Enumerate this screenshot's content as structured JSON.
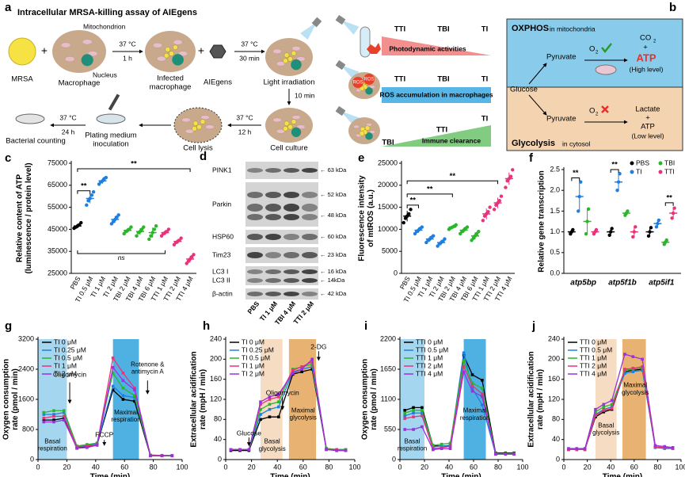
{
  "panel_a": {
    "label": "a",
    "title": "Intracellular MRSA-killing assay of AIEgens",
    "plus": "+",
    "mrsa": "MRSA",
    "macrophage": "Macrophage",
    "mitochondrion": "Mitochondrion",
    "nucleus": "Nucleus",
    "step1": {
      "top": "37 °C",
      "bottom": "1 h"
    },
    "infected": "Infected\nmacrophage",
    "aiegens": "AIEgens",
    "step2": {
      "top": "37 °C",
      "bottom": "30 min"
    },
    "irradiation": "Light irradiation",
    "step3": "10 min",
    "culture": "Cell culture",
    "step4": {
      "top": "37 °C",
      "bottom": "12 h"
    },
    "lysis": "Cell lysis",
    "plating": "Plating medium\ninoculation",
    "step5": {
      "top": "37 °C",
      "bottom": "24 h"
    },
    "counting": "Bacterial counting",
    "ros": "ROS",
    "rows": [
      {
        "labels": [
          "TTI",
          "TBI",
          "TI"
        ],
        "text": "Photodynamic activities"
      },
      {
        "labels": [
          "TTI",
          "TBI",
          "TI"
        ],
        "text": "ROS accumulation in macrophages"
      },
      {
        "labels": [
          "TBI",
          "TTI",
          "TI"
        ],
        "text": "Immune clearance"
      }
    ]
  },
  "panel_b": {
    "label": "b",
    "top_title": "OXPHOS",
    "top_sub": "in mitochondria",
    "pyruvate": "Pyruvate",
    "o2": "O",
    "o2_sub": "2",
    "co2": "CO",
    "co2_sub": "2",
    "plus": "+",
    "atp": "ATP",
    "high": "(High level)",
    "glucose": "Glucose",
    "lactate": "Lactate",
    "low": "(Low level)",
    "bottom_title": "Glycolysis",
    "bottom_sub": "in cytosol"
  },
  "panel_d": {
    "label": "d",
    "proteins": [
      "PINK1",
      "Parkin",
      "HSP60",
      "Tim23",
      "LC3 I",
      "LC3 II",
      "β-actin"
    ],
    "markers": [
      "← 63 kDa",
      "← 52 kDa",
      "← 48 kDa",
      "← 60 kDa",
      "← 23 kDa",
      "← 16 kDa",
      "← 14kDa",
      "← 42 kDa"
    ],
    "lanes": [
      "PBS",
      "TI 1 μM",
      "TBI 4 μM",
      "TTI 2 μM"
    ]
  },
  "chart_data": [
    {
      "type": "dot",
      "label": "c",
      "ylabel": "Relative content of ATP\n(luminescence / protein level)",
      "categories": [
        "PBS",
        "TI 0.5 μM",
        "TI 1 μM",
        "TI 2 μM",
        "TBI 2 μM",
        "TBI 4 μM",
        "TBI 6 μM",
        "TTI 1 μM",
        "TTI 2 μM",
        "TTI 4 μM"
      ],
      "colors": [
        "#000000",
        "#1f7fe0",
        "#1f7fe0",
        "#1f7fe0",
        "#2ab52a",
        "#2ab52a",
        "#2ab52a",
        "#e8337a",
        "#e8337a",
        "#e8337a"
      ],
      "values": [
        46500,
        59000,
        67000,
        49500,
        44500,
        44000,
        43500,
        43500,
        39500,
        31500
      ],
      "errors": [
        1000,
        2200,
        1200,
        1500,
        1100,
        1500,
        2300,
        1100,
        1100,
        1500
      ],
      "points": [
        [
          45500,
          46000,
          46500,
          47000,
          48000
        ],
        [
          56000,
          58000,
          59000,
          60500,
          62000
        ],
        [
          65500,
          66500,
          67000,
          68000,
          68500
        ],
        [
          47500,
          48500,
          49500,
          50500,
          51500
        ],
        [
          43000,
          44000,
          44500,
          45000,
          46000
        ],
        [
          42000,
          43500,
          44000,
          45000,
          46000
        ],
        [
          40500,
          42000,
          43500,
          45000,
          46500
        ],
        [
          42000,
          43000,
          43500,
          44000,
          45000
        ],
        [
          38000,
          39000,
          39500,
          40000,
          41000
        ],
        [
          29500,
          30500,
          31500,
          32500,
          33500
        ]
      ],
      "ylim": [
        25000,
        75000
      ],
      "yticks": [
        25000,
        35000,
        45000,
        55000,
        65000,
        75000
      ],
      "annotations": [
        "**",
        "**",
        "ns"
      ]
    },
    {
      "type": "dot",
      "label": "e",
      "ylabel": "Fluorescence intensity\nof mtROS (a.u.)",
      "categories": [
        "PBS",
        "TI 0.5 μM",
        "TI 1 μM",
        "TI 2 μM",
        "TBI 2 μM",
        "TBI 4 μM",
        "TBI 6 μM",
        "TTI 1 μM",
        "TTI 2 μM",
        "TTI 4 μM"
      ],
      "colors": [
        "#000000",
        "#1f7fe0",
        "#1f7fe0",
        "#1f7fe0",
        "#2ab52a",
        "#2ab52a",
        "#2ab52a",
        "#e8337a",
        "#e8337a",
        "#e8337a"
      ],
      "values": [
        13000,
        9800,
        7800,
        7000,
        10500,
        9800,
        8500,
        13500,
        16000,
        21500
      ],
      "errors": [
        1200,
        600,
        600,
        600,
        400,
        600,
        800,
        1200,
        1200,
        1400
      ],
      "points": [
        [
          11500,
          12500,
          13000,
          13500,
          14500
        ],
        [
          9000,
          9500,
          9800,
          10200,
          10500
        ],
        [
          7000,
          7500,
          7800,
          8200,
          8500
        ],
        [
          6200,
          6700,
          7000,
          7300,
          7800
        ],
        [
          10000,
          10300,
          10500,
          10700,
          11000
        ],
        [
          9000,
          9500,
          9800,
          10200,
          10500
        ],
        [
          7500,
          8000,
          8500,
          9000,
          9500
        ],
        [
          12000,
          13000,
          13500,
          14000,
          15000
        ],
        [
          14500,
          15500,
          16000,
          16500,
          17500
        ],
        [
          19500,
          21000,
          21500,
          22000,
          23500
        ]
      ],
      "ylim": [
        0,
        25000
      ],
      "yticks": [
        0,
        5000,
        10000,
        15000,
        20000,
        25000
      ],
      "annotations": [
        "**",
        "**",
        "**"
      ]
    },
    {
      "type": "grouped_dot",
      "label": "f",
      "ylabel": "Relative gene transcription",
      "categories": [
        "atp5bp",
        "atp5f1b",
        "atp5if1"
      ],
      "series": [
        {
          "name": "PBS",
          "color": "#000000",
          "values": [
            1.0,
            1.0,
            1.0
          ],
          "errors": [
            0.05,
            0.08,
            0.1
          ],
          "points": [
            [
              0.95,
              1.0,
              1.05
            ],
            [
              0.92,
              1.0,
              1.08
            ],
            [
              0.9,
              1.0,
              1.1
            ]
          ]
        },
        {
          "name": "TI",
          "color": "#1f7fe0",
          "values": [
            1.85,
            2.2,
            1.2
          ],
          "errors": [
            0.35,
            0.2,
            0.08
          ],
          "points": [
            [
              1.5,
              1.85,
              2.2
            ],
            [
              2.0,
              2.2,
              2.4
            ],
            [
              1.12,
              1.2,
              1.28
            ]
          ]
        },
        {
          "name": "TBI",
          "color": "#2ab52a",
          "values": [
            1.25,
            1.45,
            0.75
          ],
          "errors": [
            0.3,
            0.05,
            0.05
          ],
          "points": [
            [
              0.95,
              1.25,
              1.55
            ],
            [
              1.4,
              1.45,
              1.5
            ],
            [
              0.7,
              0.75,
              0.8
            ]
          ]
        },
        {
          "name": "TTI",
          "color": "#e8337a",
          "values": [
            1.0,
            1.0,
            1.45
          ],
          "errors": [
            0.05,
            0.12,
            0.12
          ],
          "points": [
            [
              0.95,
              1.0,
              1.05
            ],
            [
              0.88,
              1.0,
              1.12
            ],
            [
              1.33,
              1.45,
              1.57
            ]
          ]
        }
      ],
      "ylim": [
        0,
        2.5
      ],
      "yticks": [
        {
          "value": 0,
          "label": "0.0"
        },
        0.5,
        {
          "value": 1,
          "label": "1.0"
        },
        1.5,
        {
          "value": 2,
          "label": "2.0"
        },
        2.5
      ],
      "annotations": [
        "**",
        "**",
        "**"
      ]
    },
    {
      "type": "line",
      "label": "g",
      "ylabel": "Oxygen consumption\nrate (pmol / min)",
      "xlabel": "Time (min)",
      "x": [
        4,
        11,
        18,
        27,
        34,
        41,
        52,
        59,
        67,
        78,
        86,
        93
      ],
      "series": [
        {
          "name": "TI 0 μM",
          "color": "#000000",
          "values": [
            1050,
            1050,
            1100,
            300,
            350,
            400,
            1850,
            1600,
            1550,
            100,
            100,
            100
          ]
        },
        {
          "name": "TI 0.25 μM",
          "color": "#1f7fe0",
          "values": [
            1200,
            1200,
            1250,
            350,
            380,
            420,
            1950,
            1700,
            1650,
            120,
            110,
            110
          ]
        },
        {
          "name": "TI 0.5 μM",
          "color": "#2ab52a",
          "values": [
            1250,
            1300,
            1300,
            360,
            400,
            440,
            2300,
            1900,
            1700,
            120,
            110,
            110
          ]
        },
        {
          "name": "TI 1 μM",
          "color": "#e8337a",
          "values": [
            1100,
            1150,
            1150,
            330,
            360,
            400,
            2700,
            2300,
            1900,
            110,
            110,
            100
          ]
        },
        {
          "name": "TI 2 μM",
          "color": "#9b30e0",
          "values": [
            1000,
            1000,
            1050,
            300,
            320,
            380,
            2450,
            2100,
            1850,
            100,
            100,
            100
          ]
        }
      ],
      "xlim": [
        0,
        100
      ],
      "xticks": [
        0,
        20,
        40,
        60,
        80,
        100
      ],
      "ylim": [
        0,
        3200
      ],
      "yticks": [
        0,
        800,
        1600,
        2400,
        3200
      ],
      "annotations": [
        "Oligomycin",
        "FCCP",
        "Rotenone &\nantimycin A",
        "Basal\nrespiration",
        "Maximal\nrespiration"
      ]
    },
    {
      "type": "line",
      "label": "h",
      "ylabel": "Extracellular acidification\nrate (mpH / min)",
      "xlabel": "Time (min)",
      "x": [
        4,
        11,
        18,
        27,
        34,
        41,
        52,
        59,
        67,
        78,
        86,
        93
      ],
      "series": [
        {
          "name": "TI 0 μM",
          "color": "#000000",
          "values": [
            18,
            18,
            18,
            80,
            85,
            85,
            170,
            175,
            180,
            20,
            18,
            18
          ]
        },
        {
          "name": "TI 0.25 μM",
          "color": "#1f7fe0",
          "values": [
            20,
            20,
            20,
            90,
            100,
            105,
            175,
            180,
            185,
            22,
            20,
            20
          ]
        },
        {
          "name": "TI 0.5 μM",
          "color": "#2ab52a",
          "values": [
            20,
            20,
            20,
            100,
            110,
            115,
            180,
            185,
            190,
            22,
            20,
            20
          ]
        },
        {
          "name": "TI 1 μM",
          "color": "#e8337a",
          "values": [
            20,
            20,
            20,
            110,
            120,
            125,
            178,
            185,
            195,
            20,
            20,
            18
          ]
        },
        {
          "name": "TI 2 μM",
          "color": "#9b30e0",
          "values": [
            20,
            20,
            20,
            115,
            125,
            130,
            172,
            180,
            200,
            20,
            18,
            18
          ]
        }
      ],
      "xlim": [
        0,
        100
      ],
      "xticks": [
        0,
        20,
        40,
        60,
        80,
        100
      ],
      "ylim": [
        0,
        240
      ],
      "yticks": [
        0,
        40,
        80,
        120,
        160,
        200,
        240
      ],
      "annotations": [
        "Glucose",
        "Oligomycin",
        "2-DG",
        "Basal\nglycolysis",
        "Maximal\nglycolysis"
      ]
    },
    {
      "type": "line",
      "label": "i",
      "ylabel": "Oxygen consumption\nrate (pmol / min)",
      "xlabel": "Time (min)",
      "x": [
        4,
        11,
        18,
        27,
        34,
        41,
        52,
        59,
        67,
        78,
        86,
        93
      ],
      "series": [
        {
          "name": "TTI 0 μM",
          "color": "#000000",
          "values": [
            900,
            950,
            950,
            250,
            250,
            250,
            1900,
            1550,
            1450,
            120,
            120,
            120
          ]
        },
        {
          "name": "TTI 0.5 μM",
          "color": "#1f7fe0",
          "values": [
            800,
            850,
            850,
            230,
            250,
            260,
            1950,
            1300,
            1000,
            100,
            100,
            100
          ]
        },
        {
          "name": "TTI 1 μM",
          "color": "#2ab52a",
          "values": [
            850,
            900,
            900,
            260,
            280,
            300,
            1800,
            1400,
            1300,
            110,
            110,
            110
          ]
        },
        {
          "name": "TTI 2 μM",
          "color": "#e8337a",
          "values": [
            750,
            780,
            800,
            200,
            220,
            240,
            1700,
            1350,
            1200,
            100,
            100,
            100
          ]
        },
        {
          "name": "TTI 4 μM",
          "color": "#9b30e0",
          "values": [
            550,
            550,
            600,
            180,
            200,
            200,
            1600,
            1250,
            1150,
            100,
            100,
            100
          ]
        }
      ],
      "xlim": [
        0,
        100
      ],
      "xticks": [
        0,
        20,
        40,
        60,
        80,
        100
      ],
      "ylim": [
        0,
        2200
      ],
      "yticks": [
        0,
        550,
        1100,
        1650,
        2200
      ],
      "annotations": [
        "Basal\nrespiration",
        "Maximal\nrespiration"
      ]
    },
    {
      "type": "line",
      "label": "j",
      "ylabel": "Extracellular acidification\nrate (mpH / min)",
      "xlabel": "Time (min)",
      "x": [
        4,
        11,
        18,
        27,
        34,
        41,
        52,
        59,
        67,
        78,
        86,
        93
      ],
      "series": [
        {
          "name": "TTI 0 μM",
          "color": "#000000",
          "values": [
            20,
            20,
            20,
            85,
            95,
            100,
            175,
            178,
            180,
            25,
            24,
            22
          ]
        },
        {
          "name": "TTI 0.5 μM",
          "color": "#1f7fe0",
          "values": [
            20,
            20,
            20,
            90,
            100,
            105,
            172,
            175,
            178,
            24,
            22,
            22
          ]
        },
        {
          "name": "TTI 1 μM",
          "color": "#2ab52a",
          "values": [
            20,
            20,
            20,
            95,
            105,
            110,
            178,
            180,
            182,
            25,
            24,
            22
          ]
        },
        {
          "name": "TTI 2 μM",
          "color": "#e8337a",
          "values": [
            20,
            20,
            20,
            88,
            98,
            102,
            180,
            182,
            185,
            25,
            24,
            22
          ]
        },
        {
          "name": "TTI 4 μM",
          "color": "#9b30e0",
          "values": [
            22,
            22,
            22,
            100,
            110,
            118,
            210,
            205,
            200,
            28,
            26,
            24
          ]
        }
      ],
      "xlim": [
        0,
        100
      ],
      "xticks": [
        0,
        20,
        40,
        60,
        80,
        100
      ],
      "ylim": [
        0,
        240
      ],
      "yticks": [
        0,
        40,
        80,
        120,
        160,
        200,
        240
      ],
      "annotations": [
        "Basal\nglycolysis",
        "Maximal\nglycolysis"
      ]
    }
  ]
}
